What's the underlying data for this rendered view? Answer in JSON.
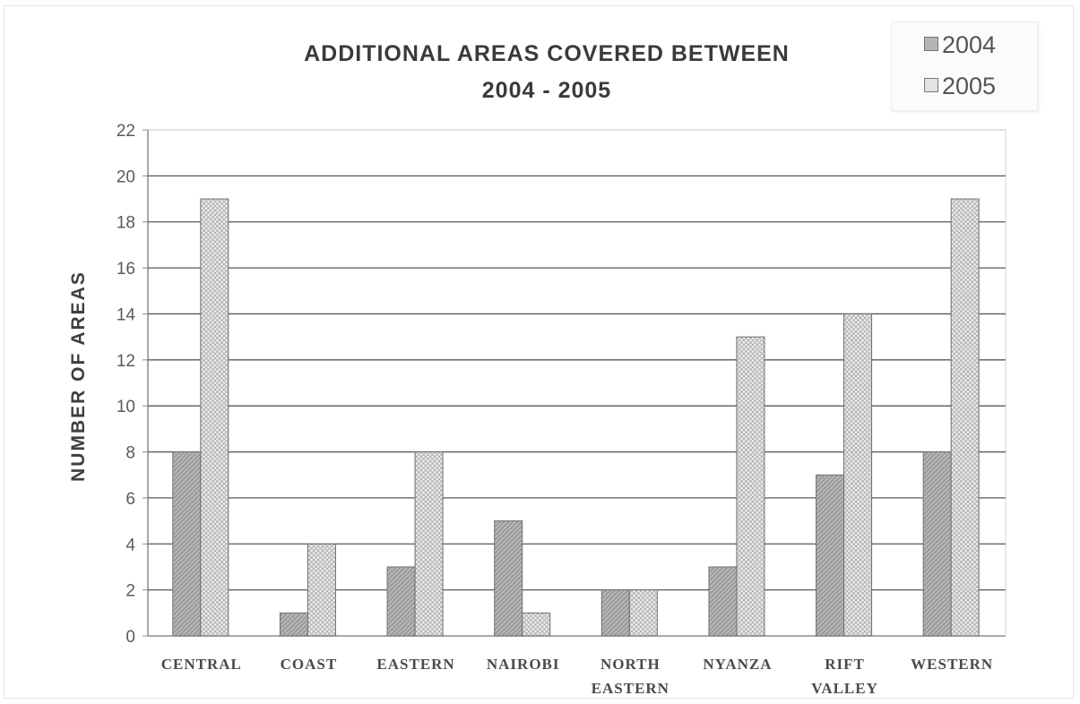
{
  "chart_data": {
    "type": "bar",
    "title_lines": [
      "ADDITIONAL AREAS COVERED BETWEEN",
      "2004 - 2005"
    ],
    "xlabel": "",
    "ylabel": "NUMBER OF AREAS",
    "categories": [
      [
        "CENTRAL"
      ],
      [
        "COAST"
      ],
      [
        "EASTERN"
      ],
      [
        "NAIROBI"
      ],
      [
        "NORTH",
        "EASTERN"
      ],
      [
        "NYANZA"
      ],
      [
        "RIFT",
        "VALLEY"
      ],
      [
        "WESTERN"
      ]
    ],
    "series": [
      {
        "name": "2004",
        "values": [
          8,
          1,
          3,
          5,
          2,
          3,
          7,
          8
        ],
        "color": "#b5b5b5"
      },
      {
        "name": "2005",
        "values": [
          19,
          4,
          8,
          1,
          2,
          13,
          14,
          19
        ],
        "color": "#e3e3e3"
      }
    ],
    "ylim": [
      0,
      22
    ],
    "yticks": [
      0,
      2,
      4,
      6,
      8,
      10,
      12,
      14,
      16,
      18,
      20,
      22
    ],
    "grid": true,
    "legend_position": "top-right",
    "pattern": "hatched"
  }
}
